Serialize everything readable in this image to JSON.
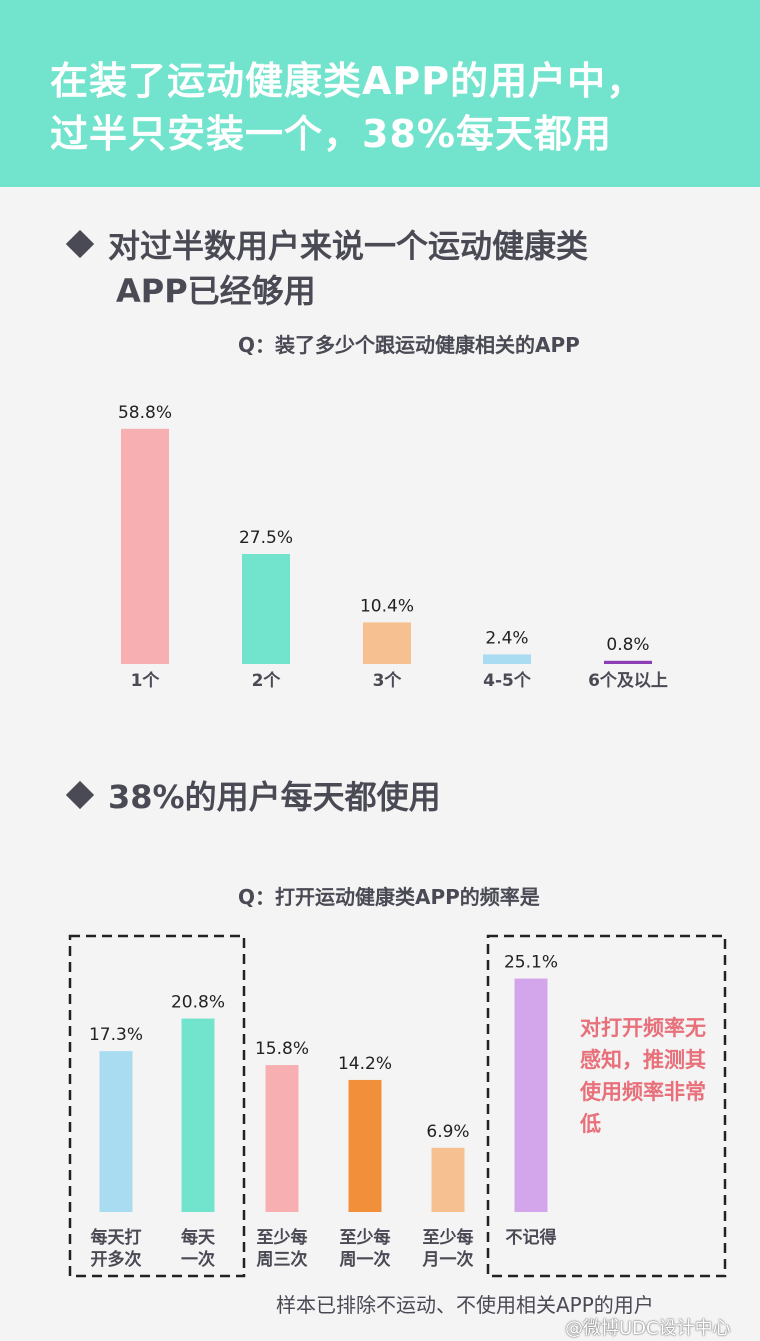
{
  "header": {
    "line1": "在装了运动健康类APP的用户中，",
    "line2": "过半只安装一个，38%每天都用"
  },
  "section1": {
    "title_line1": "对过半数用户来说一个运动健康类",
    "title_line2": "APP已经够用",
    "question": "Q：装了多少个跟运动健康相关的APP"
  },
  "section2": {
    "title": "38%的用户每天都使用",
    "question": "Q：打开运动健康类APP的频率是"
  },
  "note": "对打开频率无感知，推测其使用频率非常低",
  "footnote": "样本已排除不运动、不使用相关APP的用户",
  "watermark": "@微博UDC设计中心",
  "chart_data": [
    {
      "type": "bar",
      "categories": [
        "1个",
        "2个",
        "3个",
        "4-5个",
        "6个及以上"
      ],
      "values": [
        58.8,
        27.5,
        10.4,
        2.4,
        0.8
      ],
      "value_labels": [
        "58.8%",
        "27.5%",
        "10.4%",
        "2.4%",
        "0.8%"
      ],
      "colors": [
        "#f7afb2",
        "#72e3cd",
        "#f7c090",
        "#a9dcf0",
        "#8c3fb4"
      ],
      "title": "Q：装了多少个跟运动健康相关的APP",
      "grid": false
    },
    {
      "type": "bar",
      "categories": [
        [
          "每天打",
          "开多次"
        ],
        [
          "每天",
          "一次"
        ],
        [
          "至少每",
          "周三次"
        ],
        [
          "至少每",
          "周一次"
        ],
        [
          "至少每",
          "月一次"
        ],
        [
          "不记得"
        ]
      ],
      "values": [
        17.3,
        20.8,
        15.8,
        14.2,
        6.9,
        25.1
      ],
      "value_labels": [
        "17.3%",
        "20.8%",
        "15.8%",
        "14.2%",
        "6.9%",
        "25.1%"
      ],
      "colors": [
        "#a9dcf0",
        "#72e3cd",
        "#f7afb2",
        "#f28f3b",
        "#f7c090",
        "#d3a6ec"
      ],
      "title": "Q：打开运动健康类APP的频率是",
      "grid": false
    }
  ]
}
